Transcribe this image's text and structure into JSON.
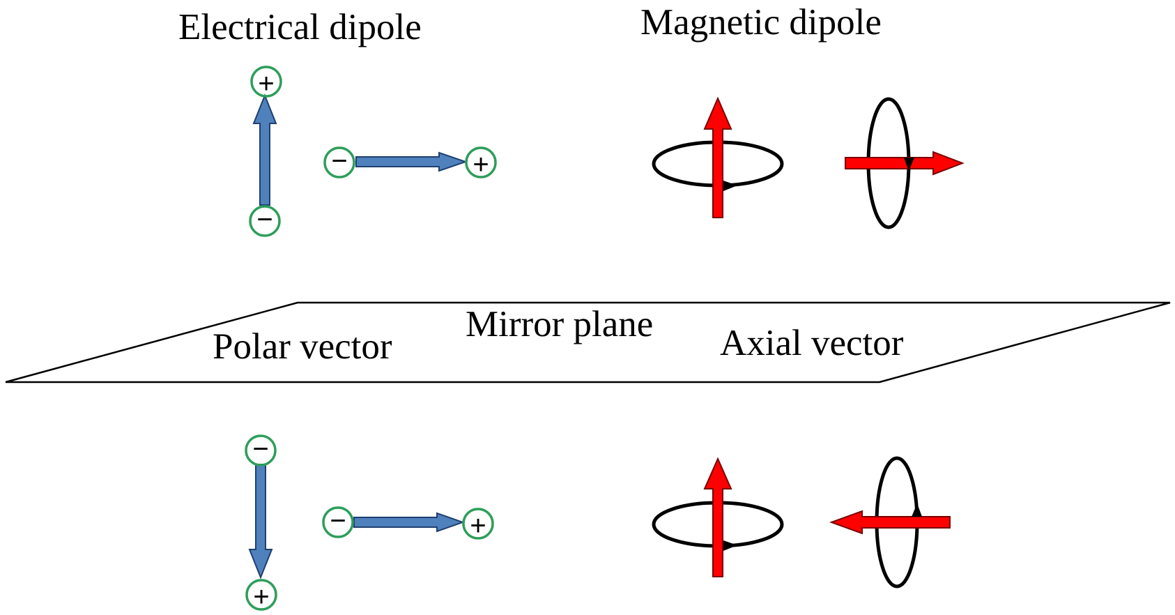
{
  "labels": {
    "electrical_dipole": "Electrical dipole",
    "magnetic_dipole": "Magnetic dipole",
    "mirror_plane": "Mirror plane",
    "polar_vector": "Polar vector",
    "axial_vector": "Axial vector"
  },
  "symbols": {
    "plus": "+",
    "minus": "−"
  },
  "colors": {
    "polar_arrow_fill": "#4f81bd",
    "axial_arrow_fill": "#ff0000",
    "charge_ring": "#2e9e5b",
    "loop_stroke": "#000000",
    "plane_stroke": "#000000",
    "text": "#000000"
  },
  "icons": {
    "polar_arrow": "blue-block-arrow",
    "axial_arrow": "red-block-arrow",
    "charge": "circled-sign",
    "current_loop": "ellipse-with-arrowhead",
    "plane": "parallelogram"
  }
}
